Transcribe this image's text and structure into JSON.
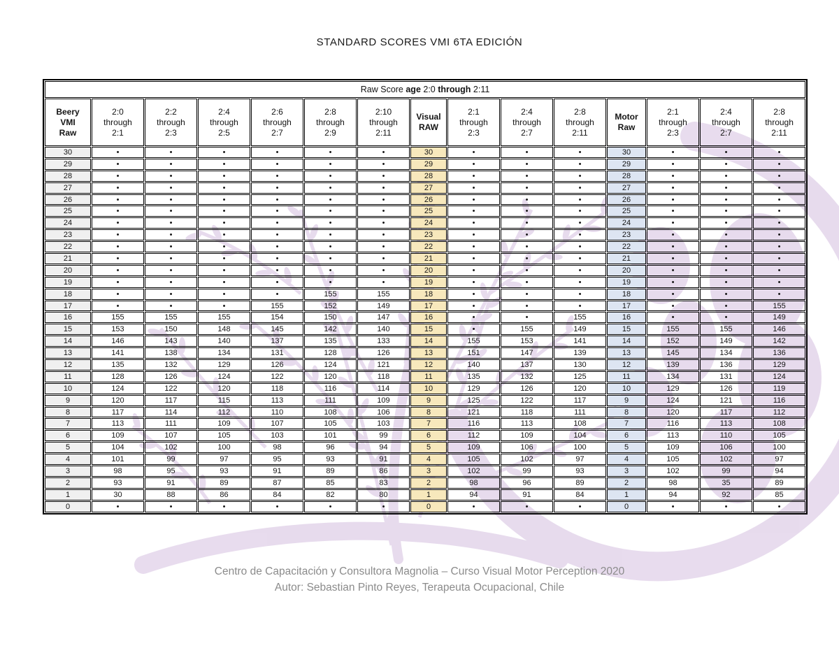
{
  "title": "STANDARD SCORES VMI 6TA EDICIÓN",
  "raw_score_header": {
    "segments": [
      {
        "text": "Raw Score ",
        "bold": false
      },
      {
        "text": "age",
        "bold": true
      },
      {
        "text": " 2:0 ",
        "bold": false
      },
      {
        "text": "through",
        "bold": true
      },
      {
        "text": " 2:11",
        "bold": false
      }
    ]
  },
  "table": {
    "columns": [
      {
        "lines": [
          "Beery",
          "VMI",
          "Raw"
        ],
        "type": "beery"
      },
      {
        "lines": [
          "2:0",
          "through",
          "2:1"
        ],
        "type": "age"
      },
      {
        "lines": [
          "2:2",
          "through",
          "2:3"
        ],
        "type": "age"
      },
      {
        "lines": [
          "2:4",
          "through",
          "2:5"
        ],
        "type": "age"
      },
      {
        "lines": [
          "2:6",
          "through",
          "2:7"
        ],
        "type": "age"
      },
      {
        "lines": [
          "2:8",
          "through",
          "2:9"
        ],
        "type": "age"
      },
      {
        "lines": [
          "2:10",
          "through",
          "2:11"
        ],
        "type": "age"
      },
      {
        "lines": [
          "Visual",
          "RAW"
        ],
        "type": "visual"
      },
      {
        "lines": [
          "2:1",
          "through",
          "2:3"
        ],
        "type": "age"
      },
      {
        "lines": [
          "2:4",
          "through",
          "2:7"
        ],
        "type": "age"
      },
      {
        "lines": [
          "2:8",
          "through",
          "2:11"
        ],
        "type": "age"
      },
      {
        "lines": [
          "Motor",
          "Raw"
        ],
        "type": "motor"
      },
      {
        "lines": [
          "2:1",
          "through",
          "2:3"
        ],
        "type": "age"
      },
      {
        "lines": [
          "2:4",
          "through",
          "2:7"
        ],
        "type": "age"
      },
      {
        "lines": [
          "2:8",
          "through",
          "2:11"
        ],
        "type": "age"
      }
    ],
    "rows": [
      {
        "raw": "30",
        "vmi": [
          "•",
          "•",
          "•",
          "•",
          "•",
          "•"
        ],
        "visual": [
          "•",
          "•",
          "•"
        ],
        "motor": [
          "•",
          "•",
          "•"
        ]
      },
      {
        "raw": "29",
        "vmi": [
          "•",
          "•",
          "•",
          "•",
          "•",
          "•"
        ],
        "visual": [
          "•",
          "•",
          "•"
        ],
        "motor": [
          "•",
          "•",
          "•"
        ]
      },
      {
        "raw": "28",
        "vmi": [
          "•",
          "•",
          "•",
          "•",
          "•",
          "•"
        ],
        "visual": [
          "•",
          "•",
          "•"
        ],
        "motor": [
          "•",
          "•",
          "•"
        ]
      },
      {
        "raw": "27",
        "vmi": [
          "•",
          "•",
          "•",
          "•",
          "•",
          "•"
        ],
        "visual": [
          "•",
          "•",
          "•"
        ],
        "motor": [
          "•",
          "•",
          "•"
        ]
      },
      {
        "raw": "26",
        "vmi": [
          "•",
          "•",
          "•",
          "•",
          "•",
          "•"
        ],
        "visual": [
          "•",
          "•",
          "•"
        ],
        "motor": [
          "•",
          "•",
          "•"
        ]
      },
      {
        "raw": "25",
        "vmi": [
          "•",
          "•",
          "•",
          "•",
          "•",
          "•"
        ],
        "visual": [
          "•",
          "•",
          "•"
        ],
        "motor": [
          "•",
          "•",
          "•"
        ]
      },
      {
        "raw": "24",
        "vmi": [
          "•",
          "•",
          "•",
          "•",
          "•",
          "•"
        ],
        "visual": [
          "•",
          "•",
          "•"
        ],
        "motor": [
          "•",
          "•",
          "•"
        ]
      },
      {
        "raw": "23",
        "vmi": [
          "•",
          "•",
          "•",
          "•",
          "•",
          "•"
        ],
        "visual": [
          "•",
          "•",
          "•"
        ],
        "motor": [
          "•",
          "•",
          "•"
        ]
      },
      {
        "raw": "22",
        "vmi": [
          "•",
          "•",
          "•",
          "•",
          "•",
          "•"
        ],
        "visual": [
          "•",
          "•",
          "•"
        ],
        "motor": [
          "•",
          "•",
          "•"
        ]
      },
      {
        "raw": "21",
        "vmi": [
          "•",
          "•",
          "•",
          "•",
          "•",
          "•"
        ],
        "visual": [
          "•",
          "•",
          "•"
        ],
        "motor": [
          "•",
          "•",
          "•"
        ]
      },
      {
        "raw": "20",
        "vmi": [
          "•",
          "•",
          "•",
          "•",
          "•",
          "•"
        ],
        "visual": [
          "•",
          "•",
          "•"
        ],
        "motor": [
          "•",
          "•",
          "•"
        ]
      },
      {
        "raw": "19",
        "vmi": [
          "•",
          "•",
          "•",
          "•",
          "•",
          "•"
        ],
        "visual": [
          "•",
          "•",
          "•"
        ],
        "motor": [
          "•",
          "•",
          "•"
        ]
      },
      {
        "raw": "18",
        "vmi": [
          "•",
          "•",
          "•",
          "•",
          "155",
          "155"
        ],
        "visual": [
          "•",
          "•",
          "•"
        ],
        "motor": [
          "•",
          "•",
          "•"
        ]
      },
      {
        "raw": "17",
        "vmi": [
          "•",
          "•",
          "•",
          "155",
          "152",
          "149"
        ],
        "visual": [
          "•",
          "•",
          "•"
        ],
        "motor": [
          "•",
          "•",
          "155"
        ]
      },
      {
        "raw": "16",
        "vmi": [
          "155",
          "155",
          "155",
          "154",
          "150",
          "147"
        ],
        "visual": [
          "•",
          "•",
          "155"
        ],
        "motor": [
          "•",
          "•",
          "149"
        ]
      },
      {
        "raw": "15",
        "vmi": [
          "153",
          "150",
          "148",
          "145",
          "142",
          "140"
        ],
        "visual": [
          "•",
          "155",
          "149"
        ],
        "motor": [
          "155",
          "155",
          "146"
        ]
      },
      {
        "raw": "14",
        "vmi": [
          "146",
          "143",
          "140",
          "137",
          "135",
          "133"
        ],
        "visual": [
          "155",
          "153",
          "141"
        ],
        "motor": [
          "152",
          "149",
          "142"
        ]
      },
      {
        "raw": "13",
        "vmi": [
          "141",
          "138",
          "134",
          "131",
          "128",
          "126"
        ],
        "visual": [
          "151",
          "147",
          "139"
        ],
        "motor": [
          "145",
          "134",
          "136"
        ]
      },
      {
        "raw": "12",
        "vmi": [
          "135",
          "132",
          "129",
          "126",
          "124",
          "121"
        ],
        "visual": [
          "140",
          "137",
          "130"
        ],
        "motor": [
          "139",
          "136",
          "129"
        ]
      },
      {
        "raw": "11",
        "vmi": [
          "128",
          "126",
          "124",
          "122",
          "120",
          "118"
        ],
        "visual": [
          "135",
          "132",
          "125"
        ],
        "motor": [
          "134",
          "131",
          "124"
        ]
      },
      {
        "raw": "10",
        "vmi": [
          "124",
          "122",
          "120",
          "118",
          "116",
          "114"
        ],
        "visual": [
          "129",
          "126",
          "120"
        ],
        "motor": [
          "129",
          "126",
          "119"
        ]
      },
      {
        "raw": "9",
        "vmi": [
          "120",
          "117",
          "115",
          "113",
          "111",
          "109"
        ],
        "visual": [
          "125",
          "122",
          "117"
        ],
        "motor": [
          "124",
          "121",
          "116"
        ]
      },
      {
        "raw": "8",
        "vmi": [
          "117",
          "114",
          "112",
          "110",
          "108",
          "106"
        ],
        "visual": [
          "121",
          "118",
          "111"
        ],
        "motor": [
          "120",
          "117",
          "112"
        ]
      },
      {
        "raw": "7",
        "vmi": [
          "113",
          "111",
          "109",
          "107",
          "105",
          "103"
        ],
        "visual": [
          "116",
          "113",
          "108"
        ],
        "motor": [
          "116",
          "113",
          "108"
        ]
      },
      {
        "raw": "6",
        "vmi": [
          "109",
          "107",
          "105",
          "103",
          "101",
          "99"
        ],
        "visual": [
          "112",
          "109",
          "104"
        ],
        "motor": [
          "113",
          "110",
          "105"
        ]
      },
      {
        "raw": "5",
        "vmi": [
          "104",
          "102",
          "100",
          "98",
          "96",
          "94"
        ],
        "visual": [
          "109",
          "106",
          "100"
        ],
        "motor": [
          "109",
          "106",
          "100"
        ]
      },
      {
        "raw": "4",
        "vmi": [
          "101",
          "99",
          "97",
          "95",
          "93",
          "91"
        ],
        "visual": [
          "105",
          "102",
          "97"
        ],
        "motor": [
          "105",
          "102",
          "97"
        ]
      },
      {
        "raw": "3",
        "vmi": [
          "98",
          "95",
          "93",
          "91",
          "89",
          "86"
        ],
        "visual": [
          "102",
          "99",
          "93"
        ],
        "motor": [
          "102",
          "99",
          "94"
        ]
      },
      {
        "raw": "2",
        "vmi": [
          "93",
          "91",
          "89",
          "87",
          "85",
          "83"
        ],
        "visual": [
          "98",
          "96",
          "89"
        ],
        "motor": [
          "98",
          "35",
          "89"
        ]
      },
      {
        "raw": "1",
        "vmi": [
          "30",
          "88",
          "86",
          "84",
          "82",
          "80"
        ],
        "visual": [
          "94",
          "91",
          "84"
        ],
        "motor": [
          "94",
          "92",
          "85"
        ]
      },
      {
        "raw": "0",
        "vmi": [
          "•",
          "•",
          "•",
          "•",
          "•",
          "•"
        ],
        "visual": [
          "•",
          "•",
          "•"
        ],
        "motor": [
          "•",
          "•",
          "•"
        ]
      }
    ]
  },
  "footer": {
    "line1": "Centro de Capacitación y Consultora Magnolia – Curso Visual Motor Perception 2020",
    "line2": "Autor: Sebastian Pinto Reyes, Terapeuta Ocupacional, Chile"
  },
  "colors": {
    "beery_bg": "#f0f0f0",
    "visual_bg": "#f7e8bc",
    "motor_bg": "#dde5f2",
    "watermark": "#c7abd6",
    "footer_text": "#8b8b8b"
  }
}
